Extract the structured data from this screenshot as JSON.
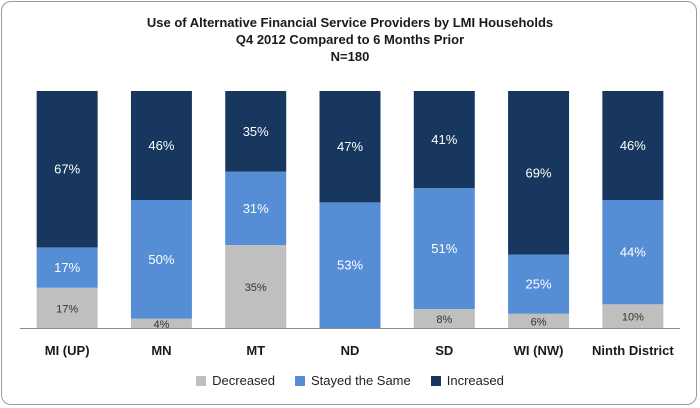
{
  "chart_data": {
    "type": "bar",
    "stacked": true,
    "title": "Use of Alternative Financial Service Providers by LMI Households",
    "subtitle": "Q4 2012 Compared to 6 Months Prior",
    "note": "N=180",
    "categories": [
      "MI (UP)",
      "MN",
      "MT",
      "ND",
      "SD",
      "WI (NW)",
      "Ninth District"
    ],
    "ylim": [
      0,
      100
    ],
    "grid": false,
    "legend_position": "bottom",
    "series": [
      {
        "name": "Decreased",
        "color": "#bfbfbf",
        "values": [
          17,
          4,
          35,
          0,
          8,
          6,
          10
        ],
        "labels": [
          "17%",
          "4%",
          "35%",
          "",
          "8%",
          "6%",
          "10%"
        ]
      },
      {
        "name": "Stayed the Same",
        "color": "#558ed5",
        "values": [
          17,
          50,
          31,
          53,
          51,
          25,
          44
        ],
        "labels": [
          "17%",
          "50%",
          "31%",
          "53%",
          "51%",
          "25%",
          "44%"
        ]
      },
      {
        "name": "Increased",
        "color": "#17375e",
        "values": [
          67,
          46,
          35,
          47,
          41,
          69,
          46
        ],
        "labels": [
          "67%",
          "46%",
          "35%",
          "47%",
          "41%",
          "69%",
          "46%"
        ]
      }
    ]
  }
}
